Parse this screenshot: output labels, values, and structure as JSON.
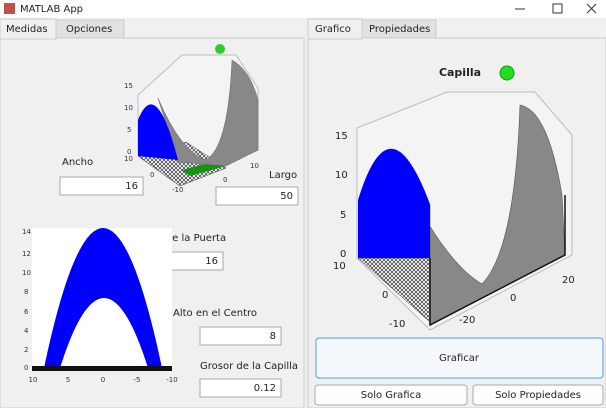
{
  "window": {
    "title": "MATLAB App"
  },
  "left_tabs": [
    "Medidas",
    "Opciones"
  ],
  "right_tabs": [
    "Grafico",
    "Propiedades"
  ],
  "fields": [
    {
      "label": "Ancho",
      "value": "16"
    },
    {
      "label": "Largo",
      "value": "50"
    },
    {
      "label": "Alto de la Puerta",
      "value": "16"
    },
    {
      "label": "Alto en el Centro",
      "value": "8"
    },
    {
      "label": "Grosor de la Capilla",
      "value": "0.12"
    }
  ],
  "preview_3d": {
    "z_ticks": [
      "15",
      "10",
      "5",
      "0"
    ],
    "x_ticks": [
      "10",
      "0",
      "-10"
    ],
    "y_ticks": [
      "0",
      "10"
    ]
  },
  "front_view": {
    "y_ticks": [
      "14",
      "12",
      "10",
      "8",
      "6",
      "4",
      "2",
      "0"
    ],
    "x_ticks": [
      "10",
      "5",
      "0",
      "-5",
      "-10"
    ]
  },
  "plot": {
    "title": "Capilla",
    "z_ticks": [
      "15",
      "10",
      "5",
      "0"
    ],
    "x_ticks": [
      "10",
      "0",
      "-10"
    ],
    "y_ticks": [
      "-20",
      "0",
      "20"
    ]
  },
  "buttons": [
    "Graficar",
    "Solo Grafica",
    "Solo Propiedades"
  ]
}
